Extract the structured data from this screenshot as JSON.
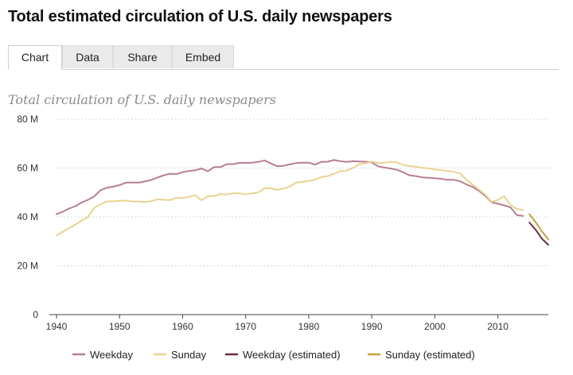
{
  "page_title": "Total estimated circulation of U.S. daily newspapers",
  "tabs": [
    {
      "label": "Chart",
      "active": true
    },
    {
      "label": "Data",
      "active": false
    },
    {
      "label": "Share",
      "active": false
    },
    {
      "label": "Embed",
      "active": false
    }
  ],
  "chart_data": {
    "type": "line",
    "title": "Total circulation of U.S. daily newspapers",
    "xlabel": "",
    "ylabel": "",
    "xlim": [
      1940,
      2018
    ],
    "ylim": [
      0,
      80
    ],
    "x_ticks": [
      1940,
      1950,
      1960,
      1970,
      1980,
      1990,
      2000,
      2010
    ],
    "y_ticks": [
      0,
      20,
      40,
      60,
      80
    ],
    "y_tick_labels": [
      "0",
      "20 M",
      "40 M",
      "60 M",
      "80 M"
    ],
    "grid": "horizontal dotted",
    "legend_placement": "bottom",
    "series": [
      {
        "name": "Weekday",
        "color": "#b87f8e",
        "x": [
          1940,
          1941,
          1942,
          1943,
          1944,
          1945,
          1946,
          1947,
          1948,
          1949,
          1950,
          1951,
          1952,
          1953,
          1954,
          1955,
          1956,
          1957,
          1958,
          1959,
          1960,
          1961,
          1962,
          1963,
          1964,
          1965,
          1966,
          1967,
          1968,
          1969,
          1970,
          1971,
          1972,
          1973,
          1974,
          1975,
          1976,
          1977,
          1978,
          1979,
          1980,
          1981,
          1982,
          1983,
          1984,
          1985,
          1986,
          1987,
          1988,
          1989,
          1990,
          1991,
          1992,
          1993,
          1994,
          1995,
          1996,
          1997,
          1998,
          1999,
          2000,
          2001,
          2002,
          2003,
          2004,
          2005,
          2006,
          2007,
          2008,
          2009,
          2010,
          2011,
          2012,
          2013,
          2014
        ],
        "values": [
          41.1,
          42.1,
          43.4,
          44.4,
          45.9,
          47.0,
          48.4,
          51.0,
          51.9,
          52.4,
          53.0,
          54.0,
          54.1,
          54.0,
          54.5,
          55.1,
          56.1,
          57.0,
          57.7,
          57.5,
          58.3,
          58.8,
          59.1,
          59.8,
          58.7,
          60.4,
          60.4,
          61.6,
          61.6,
          62.1,
          62.1,
          62.2,
          62.5,
          63.1,
          61.9,
          60.7,
          60.9,
          61.5,
          62.0,
          62.2,
          62.2,
          61.4,
          62.5,
          62.6,
          63.3,
          62.8,
          62.5,
          62.8,
          62.7,
          62.6,
          62.3,
          60.7,
          60.2,
          59.8,
          59.3,
          58.2,
          57.0,
          56.7,
          56.2,
          56.0,
          55.8,
          55.6,
          55.2,
          55.2,
          54.6,
          53.3,
          52.3,
          50.7,
          48.6,
          46.0,
          45.4,
          44.7,
          43.9,
          40.7,
          40.4
        ]
      },
      {
        "name": "Sunday",
        "color": "#e8d48f",
        "x": [
          1940,
          1941,
          1942,
          1943,
          1944,
          1945,
          1946,
          1947,
          1948,
          1949,
          1950,
          1951,
          1952,
          1953,
          1954,
          1955,
          1956,
          1957,
          1958,
          1959,
          1960,
          1961,
          1962,
          1963,
          1964,
          1965,
          1966,
          1967,
          1968,
          1969,
          1970,
          1971,
          1972,
          1973,
          1974,
          1975,
          1976,
          1977,
          1978,
          1979,
          1980,
          1981,
          1982,
          1983,
          1984,
          1985,
          1986,
          1987,
          1988,
          1989,
          1990,
          1991,
          1992,
          1993,
          1994,
          1995,
          1996,
          1997,
          1998,
          1999,
          2000,
          2001,
          2002,
          2003,
          2004,
          2005,
          2006,
          2007,
          2008,
          2009,
          2010,
          2011,
          2012,
          2013,
          2014
        ],
        "values": [
          32.4,
          33.9,
          35.4,
          36.9,
          38.5,
          40.0,
          43.7,
          45.2,
          46.3,
          46.4,
          46.6,
          46.7,
          46.3,
          46.3,
          46.1,
          46.4,
          47.2,
          47.0,
          46.9,
          47.8,
          47.7,
          48.2,
          48.9,
          46.8,
          48.4,
          48.6,
          49.3,
          49.2,
          49.7,
          49.7,
          49.2,
          49.7,
          50.0,
          51.7,
          51.7,
          51.1,
          51.6,
          52.4,
          54.0,
          54.4,
          54.7,
          55.2,
          56.3,
          56.7,
          57.6,
          58.8,
          58.9,
          60.1,
          61.5,
          62.0,
          62.6,
          62.1,
          62.2,
          62.6,
          62.3,
          61.2,
          60.8,
          60.5,
          60.1,
          59.9,
          59.4,
          59.1,
          58.8,
          58.5,
          57.8,
          55.3,
          53.2,
          51.2,
          49.1,
          46.2,
          46.9,
          48.5,
          44.8,
          43.3,
          42.8
        ]
      },
      {
        "name": "Weekday (estimated)",
        "color": "#6e2a45",
        "x": [
          2015,
          2016,
          2017,
          2018
        ],
        "values": [
          37.7,
          34.7,
          31.0,
          28.6
        ]
      },
      {
        "name": "Sunday (estimated)",
        "color": "#c9a13b",
        "x": [
          2015,
          2016,
          2017,
          2018
        ],
        "values": [
          41.1,
          37.8,
          34.0,
          30.8
        ]
      }
    ]
  }
}
